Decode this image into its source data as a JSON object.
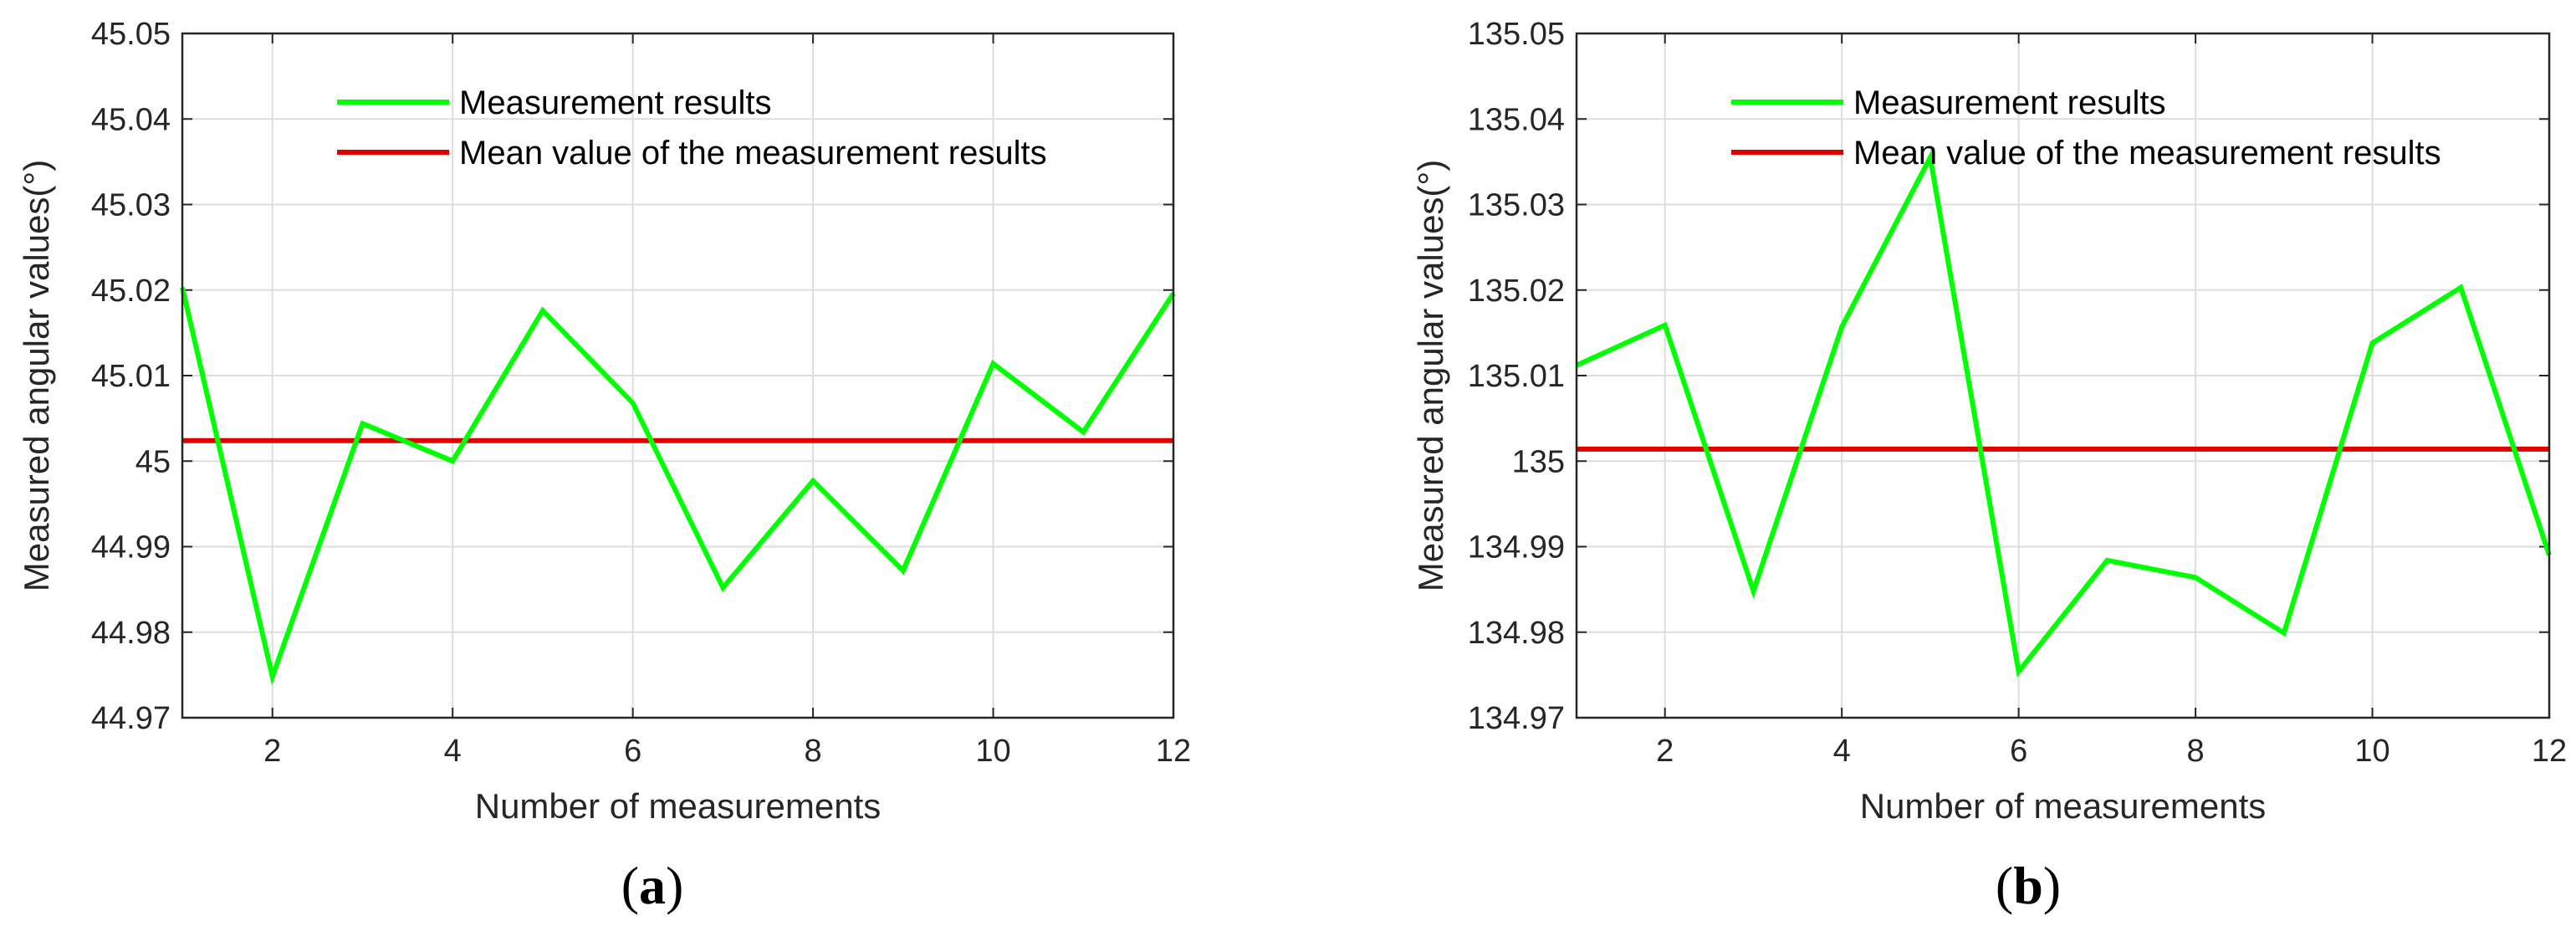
{
  "colors": {
    "measurement": "#00ff00",
    "mean": "#e00000",
    "grid": "#dddddd",
    "axis": "#262626"
  },
  "chart_data": [
    {
      "type": "line",
      "panel_label": {
        "open": "(",
        "letter": "a",
        "close": ")"
      },
      "xlabel": "Number of measurements",
      "ylabel": "Measured angular values(°)",
      "xlim": [
        1,
        12
      ],
      "ylim": [
        44.97,
        45.05
      ],
      "xticks": [
        "2",
        "4",
        "6",
        "8",
        "10",
        "12"
      ],
      "yticks": [
        "44.97",
        "44.98",
        "44.99",
        "45",
        "45.01",
        "45.02",
        "45.03",
        "45.04",
        "45.05"
      ],
      "grid": true,
      "legend_position": "top",
      "x": [
        1,
        2,
        3,
        4,
        5,
        6,
        7,
        8,
        9,
        10,
        11,
        12
      ],
      "series": [
        {
          "name": "Measurement results",
          "values": [
            45.0203,
            44.9748,
            45.0044,
            45.0,
            45.0176,
            45.0068,
            44.9852,
            44.9977,
            44.9872,
            45.0114,
            45.0034,
            45.0196
          ]
        },
        {
          "name": "Mean value of the measurement results",
          "values": [
            45.0024,
            45.0024,
            45.0024,
            45.0024,
            45.0024,
            45.0024,
            45.0024,
            45.0024,
            45.0024,
            45.0024,
            45.0024,
            45.0024
          ]
        }
      ]
    },
    {
      "type": "line",
      "panel_label": {
        "open": "(",
        "letter": "b",
        "close": ")"
      },
      "xlabel": "Number of measurements",
      "ylabel": "Measured angular values(°)",
      "xlim": [
        1,
        12
      ],
      "ylim": [
        134.97,
        135.05
      ],
      "xticks": [
        "2",
        "4",
        "6",
        "8",
        "10",
        "12"
      ],
      "yticks": [
        "134.97",
        "134.98",
        "134.99",
        "135",
        "135.01",
        "135.02",
        "135.03",
        "135.04",
        "135.05"
      ],
      "grid": true,
      "legend_position": "top",
      "x": [
        1,
        2,
        3,
        4,
        5,
        6,
        7,
        8,
        9,
        10,
        11,
        12
      ],
      "series": [
        {
          "name": "Measurement results",
          "values": [
            135.0112,
            135.0159,
            134.9848,
            135.0157,
            135.0355,
            134.9754,
            134.9884,
            134.9864,
            134.9799,
            135.0138,
            135.0203,
            134.989
          ]
        },
        {
          "name": "Mean value of the measurement results",
          "values": [
            135.0014,
            135.0014,
            135.0014,
            135.0014,
            135.0014,
            135.0014,
            135.0014,
            135.0014,
            135.0014,
            135.0014,
            135.0014,
            135.0014
          ]
        }
      ]
    }
  ]
}
